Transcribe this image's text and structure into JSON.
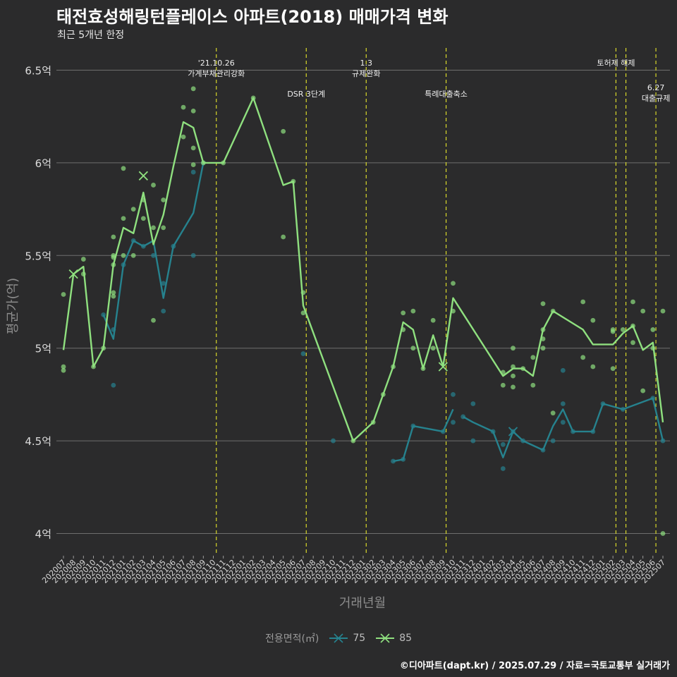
{
  "title": "태전효성해링턴플레이스 아파트(2018) 매매가격 변화",
  "subtitle": "최근 5개년 한정",
  "caption": "©디아파트(dapt.kr) / 2025.07.29 / 자료=국토교통부 실거래가",
  "legend": {
    "title": "전용면적(㎡)",
    "items": [
      {
        "label": "75",
        "color": "#26828e"
      },
      {
        "label": "85",
        "color": "#8fe07f"
      }
    ]
  },
  "chart_data": {
    "type": "line",
    "xlabel": "거래년월",
    "ylabel": "평균가(억)",
    "ylim": [
      3.88,
      6.62
    ],
    "yticks": [
      4,
      4.5,
      5,
      5.5,
      6,
      6.5
    ],
    "ytick_labels": [
      "4억",
      "4.5억",
      "5억",
      "5.5억",
      "6억",
      "6.5억"
    ],
    "categories": [
      "202007",
      "202008",
      "202009",
      "202010",
      "202011",
      "202012",
      "202101",
      "202102",
      "202103",
      "202104",
      "202105",
      "202106",
      "202107",
      "202108",
      "202109",
      "202110",
      "202111",
      "202112",
      "202201",
      "202202",
      "202203",
      "202204",
      "202205",
      "202206",
      "202207",
      "202208",
      "202209",
      "202210",
      "202211",
      "202212",
      "202301",
      "202302",
      "202303",
      "202304",
      "202305",
      "202306",
      "202307",
      "202308",
      "202309",
      "202310",
      "202311",
      "202312",
      "202401",
      "202402",
      "202403",
      "202404",
      "202405",
      "202406",
      "202407",
      "202408",
      "202409",
      "202410",
      "202411",
      "202412",
      "202501",
      "202502",
      "202503",
      "202504",
      "202505",
      "202506",
      "202507"
    ],
    "grid": true,
    "legend_position": "bottom",
    "series": [
      {
        "name": "75",
        "color": "#26828e",
        "line": [
          {
            "x": "202011",
            "y": 5.18
          },
          {
            "x": "202012",
            "y": 5.05
          },
          {
            "x": "202101",
            "y": 5.45
          },
          {
            "x": "202102",
            "y": 5.58
          },
          {
            "x": "202103",
            "y": 5.55
          },
          {
            "x": "202104",
            "y": 5.58
          },
          {
            "x": "202105",
            "y": 5.27
          },
          {
            "x": "202106",
            "y": 5.55
          },
          {
            "x": "202108",
            "y": 5.73
          },
          {
            "x": "202109",
            "y": 6.0
          },
          null,
          {
            "x": "202304",
            "y": 4.39
          },
          {
            "x": "202305",
            "y": 4.4
          },
          {
            "x": "202306",
            "y": 4.58
          },
          {
            "x": "202309",
            "y": 4.55
          },
          {
            "x": "202310",
            "y": 4.67
          },
          null,
          {
            "x": "202311",
            "y": 4.63
          },
          {
            "x": "202312",
            "y": 4.6
          },
          {
            "x": "202402",
            "y": 4.55
          },
          {
            "x": "202403",
            "y": 4.41
          },
          {
            "x": "202404",
            "y": 4.55
          },
          {
            "x": "202405",
            "y": 4.5
          },
          {
            "x": "202407",
            "y": 4.45
          },
          {
            "x": "202408",
            "y": 4.58
          },
          {
            "x": "202409",
            "y": 4.67
          },
          {
            "x": "202410",
            "y": 4.55
          },
          {
            "x": "202412",
            "y": 4.55
          },
          {
            "x": "202501",
            "y": 4.7
          },
          {
            "x": "202503",
            "y": 4.67
          },
          {
            "x": "202506",
            "y": 4.73
          },
          {
            "x": "202507",
            "y": 4.5
          }
        ],
        "points": [
          {
            "x": "202011",
            "y": 5.18
          },
          {
            "x": "202012",
            "y": 4.8
          },
          {
            "x": "202012",
            "y": 5.1
          },
          {
            "x": "202101",
            "y": 5.45
          },
          {
            "x": "202102",
            "y": 5.58
          },
          {
            "x": "202103",
            "y": 5.55
          },
          {
            "x": "202104",
            "y": 5.5
          },
          {
            "x": "202105",
            "y": 5.2
          },
          {
            "x": "202105",
            "y": 5.35
          },
          {
            "x": "202106",
            "y": 5.55
          },
          {
            "x": "202108",
            "y": 5.5
          },
          {
            "x": "202108",
            "y": 5.95
          },
          {
            "x": "202109",
            "y": 6.0
          },
          {
            "x": "202207",
            "y": 4.97
          },
          {
            "x": "202210",
            "y": 4.5
          },
          {
            "x": "202304",
            "y": 4.39
          },
          {
            "x": "202305",
            "y": 4.4
          },
          {
            "x": "202306",
            "y": 4.58
          },
          {
            "x": "202309",
            "y": 4.55
          },
          {
            "x": "202310",
            "y": 4.6
          },
          {
            "x": "202310",
            "y": 4.75
          },
          {
            "x": "202311",
            "y": 4.63
          },
          {
            "x": "202312",
            "y": 4.5
          },
          {
            "x": "202312",
            "y": 4.7
          },
          {
            "x": "202402",
            "y": 4.55
          },
          {
            "x": "202403",
            "y": 4.35
          },
          {
            "x": "202403",
            "y": 4.48
          },
          {
            "x": "202404",
            "y": 4.55
          },
          {
            "x": "202405",
            "y": 4.5
          },
          {
            "x": "202407",
            "y": 4.45
          },
          {
            "x": "202408",
            "y": 4.5
          },
          {
            "x": "202409",
            "y": 4.6
          },
          {
            "x": "202409",
            "y": 4.7
          },
          {
            "x": "202409",
            "y": 4.88
          },
          {
            "x": "202410",
            "y": 4.55
          },
          {
            "x": "202412",
            "y": 4.55
          },
          {
            "x": "202501",
            "y": 4.7
          },
          {
            "x": "202503",
            "y": 4.67
          },
          {
            "x": "202506",
            "y": 4.73
          },
          {
            "x": "202507",
            "y": 4.5
          }
        ],
        "crosses": [
          {
            "x": "202404",
            "y": 4.55
          }
        ]
      },
      {
        "name": "85",
        "color": "#8fe07f",
        "line": [
          {
            "x": "202007",
            "y": 4.99
          },
          {
            "x": "202008",
            "y": 5.4
          },
          {
            "x": "202009",
            "y": 5.44
          },
          {
            "x": "202010",
            "y": 4.9
          },
          {
            "x": "202011",
            "y": 5.0
          },
          {
            "x": "202012",
            "y": 5.45
          },
          {
            "x": "202101",
            "y": 5.65
          },
          {
            "x": "202102",
            "y": 5.62
          },
          {
            "x": "202103",
            "y": 5.84
          },
          {
            "x": "202104",
            "y": 5.56
          },
          {
            "x": "202105",
            "y": 5.72
          },
          {
            "x": "202106",
            "y": 5.98
          },
          {
            "x": "202107",
            "y": 6.22
          },
          {
            "x": "202108",
            "y": 6.19
          },
          {
            "x": "202109",
            "y": 6.0
          },
          {
            "x": "202111",
            "y": 6.0
          },
          {
            "x": "202202",
            "y": 6.35
          },
          {
            "x": "202205",
            "y": 5.88
          },
          {
            "x": "202206",
            "y": 5.9
          },
          {
            "x": "202207",
            "y": 5.23
          },
          {
            "x": "202212",
            "y": 4.5
          },
          {
            "x": "202302",
            "y": 4.6
          },
          {
            "x": "202303",
            "y": 4.75
          },
          {
            "x": "202304",
            "y": 4.9
          },
          {
            "x": "202305",
            "y": 5.14
          },
          {
            "x": "202306",
            "y": 5.1
          },
          {
            "x": "202307",
            "y": 4.89
          },
          {
            "x": "202308",
            "y": 5.07
          },
          {
            "x": "202309",
            "y": 4.9
          },
          {
            "x": "202310",
            "y": 5.27
          },
          {
            "x": "202403",
            "y": 4.85
          },
          {
            "x": "202404",
            "y": 4.89
          },
          {
            "x": "202405",
            "y": 4.89
          },
          {
            "x": "202406",
            "y": 4.85
          },
          {
            "x": "202407",
            "y": 5.1
          },
          {
            "x": "202408",
            "y": 5.2
          },
          {
            "x": "202411",
            "y": 5.1
          },
          {
            "x": "202412",
            "y": 5.02
          },
          {
            "x": "202502",
            "y": 5.02
          },
          {
            "x": "202503",
            "y": 5.08
          },
          {
            "x": "202504",
            "y": 5.12
          },
          {
            "x": "202505",
            "y": 4.99
          },
          {
            "x": "202506",
            "y": 5.03
          },
          {
            "x": "202507",
            "y": 4.6
          }
        ],
        "points": [
          {
            "x": "202007",
            "y": 4.88
          },
          {
            "x": "202007",
            "y": 4.9
          },
          {
            "x": "202007",
            "y": 5.29
          },
          {
            "x": "202009",
            "y": 5.4
          },
          {
            "x": "202009",
            "y": 5.48
          },
          {
            "x": "202010",
            "y": 4.9
          },
          {
            "x": "202011",
            "y": 5.0
          },
          {
            "x": "202012",
            "y": 5.28
          },
          {
            "x": "202012",
            "y": 5.3
          },
          {
            "x": "202012",
            "y": 5.45
          },
          {
            "x": "202012",
            "y": 5.49
          },
          {
            "x": "202012",
            "y": 5.5
          },
          {
            "x": "202012",
            "y": 5.6
          },
          {
            "x": "202101",
            "y": 5.5
          },
          {
            "x": "202101",
            "y": 5.7
          },
          {
            "x": "202101",
            "y": 5.97
          },
          {
            "x": "202102",
            "y": 5.5
          },
          {
            "x": "202102",
            "y": 5.75
          },
          {
            "x": "202103",
            "y": 5.7
          },
          {
            "x": "202103",
            "y": 5.8
          },
          {
            "x": "202104",
            "y": 5.15
          },
          {
            "x": "202104",
            "y": 5.65
          },
          {
            "x": "202104",
            "y": 5.88
          },
          {
            "x": "202105",
            "y": 5.65
          },
          {
            "x": "202105",
            "y": 5.8
          },
          {
            "x": "202107",
            "y": 6.14
          },
          {
            "x": "202107",
            "y": 6.3
          },
          {
            "x": "202108",
            "y": 5.99
          },
          {
            "x": "202108",
            "y": 6.08
          },
          {
            "x": "202108",
            "y": 6.28
          },
          {
            "x": "202108",
            "y": 6.4
          },
          {
            "x": "202109",
            "y": 6.0
          },
          {
            "x": "202111",
            "y": 6.0
          },
          {
            "x": "202202",
            "y": 6.35
          },
          {
            "x": "202205",
            "y": 5.6
          },
          {
            "x": "202205",
            "y": 6.17
          },
          {
            "x": "202206",
            "y": 5.9
          },
          {
            "x": "202207",
            "y": 5.19
          },
          {
            "x": "202207",
            "y": 5.3
          },
          {
            "x": "202212",
            "y": 4.5
          },
          {
            "x": "202302",
            "y": 4.6
          },
          {
            "x": "202303",
            "y": 4.75
          },
          {
            "x": "202304",
            "y": 4.9
          },
          {
            "x": "202305",
            "y": 5.1
          },
          {
            "x": "202305",
            "y": 5.19
          },
          {
            "x": "202306",
            "y": 5.0
          },
          {
            "x": "202306",
            "y": 5.2
          },
          {
            "x": "202307",
            "y": 4.89
          },
          {
            "x": "202308",
            "y": 5.0
          },
          {
            "x": "202308",
            "y": 5.15
          },
          {
            "x": "202310",
            "y": 5.2
          },
          {
            "x": "202310",
            "y": 5.35
          },
          {
            "x": "202403",
            "y": 4.8
          },
          {
            "x": "202403",
            "y": 4.87
          },
          {
            "x": "202404",
            "y": 4.79
          },
          {
            "x": "202404",
            "y": 4.85
          },
          {
            "x": "202404",
            "y": 4.9
          },
          {
            "x": "202404",
            "y": 5.0
          },
          {
            "x": "202405",
            "y": 4.89
          },
          {
            "x": "202406",
            "y": 4.8
          },
          {
            "x": "202406",
            "y": 4.95
          },
          {
            "x": "202407",
            "y": 5.0
          },
          {
            "x": "202407",
            "y": 5.05
          },
          {
            "x": "202407",
            "y": 5.1
          },
          {
            "x": "202407",
            "y": 5.24
          },
          {
            "x": "202408",
            "y": 5.2
          },
          {
            "x": "202408",
            "y": 4.65
          },
          {
            "x": "202411",
            "y": 4.95
          },
          {
            "x": "202411",
            "y": 5.25
          },
          {
            "x": "202412",
            "y": 4.9
          },
          {
            "x": "202412",
            "y": 5.15
          },
          {
            "x": "202502",
            "y": 4.89
          },
          {
            "x": "202502",
            "y": 5.09
          },
          {
            "x": "202502",
            "y": 5.1
          },
          {
            "x": "202503",
            "y": 5.1
          },
          {
            "x": "202504",
            "y": 5.03
          },
          {
            "x": "202504",
            "y": 5.12
          },
          {
            "x": "202504",
            "y": 5.25
          },
          {
            "x": "202505",
            "y": 4.77
          },
          {
            "x": "202505",
            "y": 5.2
          },
          {
            "x": "202506",
            "y": 5.0
          },
          {
            "x": "202506",
            "y": 5.1
          },
          {
            "x": "202507",
            "y": 4.0
          },
          {
            "x": "202507",
            "y": 5.2
          }
        ],
        "crosses": [
          {
            "x": "202008",
            "y": 5.4
          },
          {
            "x": "202103",
            "y": 5.93
          },
          {
            "x": "202309",
            "y": 4.9
          }
        ]
      }
    ],
    "vlines": [
      {
        "x": 15.3,
        "lines": [
          "'21.10.26",
          "가계부채관리강화"
        ],
        "row": "top"
      },
      {
        "x": 24.3,
        "lines": [
          "DSR 3단계"
        ],
        "row": "mid"
      },
      {
        "x": 30.3,
        "lines": [
          "1.3",
          "규제완화"
        ],
        "row": "top"
      },
      {
        "x": 38.3,
        "lines": [
          "특례대출축소"
        ],
        "row": "mid"
      },
      {
        "x": 55.3,
        "lines": [
          "토허제 해제"
        ],
        "row": "top"
      },
      {
        "x": 56.3,
        "lines": [],
        "row": "top"
      },
      {
        "x": 59.3,
        "lines": [
          "6.27",
          "대출규제"
        ],
        "row": "low"
      }
    ]
  }
}
